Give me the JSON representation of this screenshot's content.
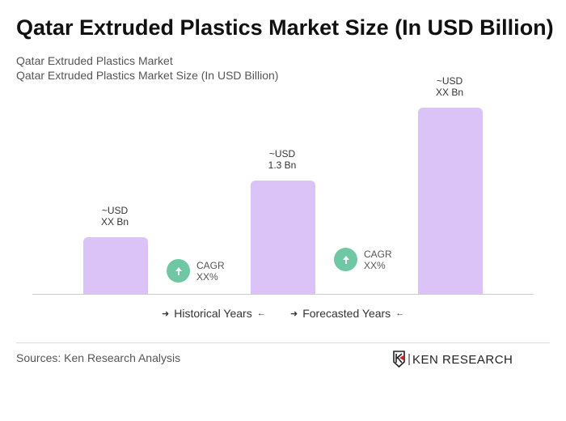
{
  "title": "Qatar Extruded Plastics Market Size (In USD Billion)",
  "subtitle1": "Qatar Extruded Plastics Market",
  "subtitle2": "Qatar Extruded Plastics Market Size (In USD Billion)",
  "chart_data": {
    "type": "bar",
    "bars": [
      {
        "label_line1": "~USD",
        "label_line2": "XX Bn"
      },
      {
        "label_line1": "~USD",
        "label_line2": "1.3 Bn",
        "value": 1.3
      },
      {
        "label_line1": "~USD",
        "label_line2": "XX Bn"
      }
    ],
    "cagr": [
      {
        "line1": "CAGR",
        "line2": "XX%"
      },
      {
        "line1": "CAGR",
        "line2": "XX%"
      }
    ],
    "legend": [
      "Historical Years",
      "Forecasted Years"
    ],
    "bar_color": "#dcc3f7",
    "cagr_color": "#6fc7a3"
  },
  "sources": "Sources: Ken Research Analysis",
  "logo_text": "KEN RESEARCH"
}
